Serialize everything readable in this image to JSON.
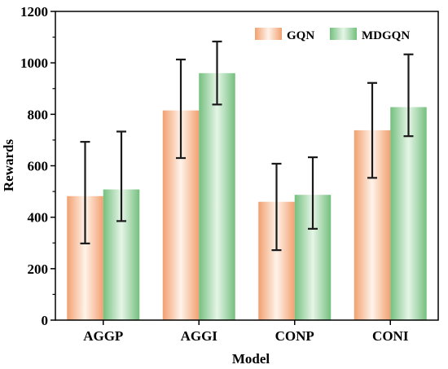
{
  "chart_data": {
    "type": "bar",
    "title": "",
    "xlabel": "Model",
    "ylabel": "Rewards",
    "categories": [
      "AGGP",
      "AGGI",
      "CONP",
      "CONI"
    ],
    "ylim": [
      0,
      1200
    ],
    "yticks": [
      0,
      200,
      400,
      600,
      800,
      1000,
      1200
    ],
    "grid": false,
    "legend_position": "top-right",
    "series": [
      {
        "name": "GQN",
        "values": [
          482,
          815,
          460,
          738
        ],
        "error_low": [
          298,
          630,
          272,
          553
        ],
        "error_high": [
          693,
          1013,
          608,
          922
        ],
        "color_edge": "#f2a070",
        "color_center": "#fff3ea"
      },
      {
        "name": "MDGQN",
        "values": [
          508,
          960,
          487,
          828
        ],
        "error_low": [
          385,
          838,
          355,
          715
        ],
        "error_high": [
          733,
          1083,
          633,
          1033
        ],
        "color_edge": "#74c07e",
        "color_center": "#e6f5e7"
      }
    ]
  }
}
